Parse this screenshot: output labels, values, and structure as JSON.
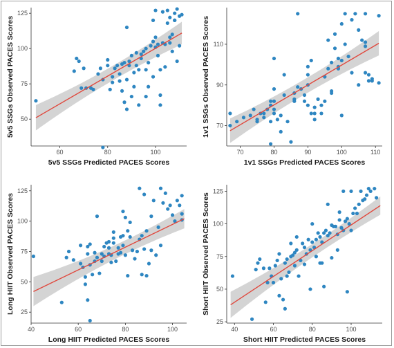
{
  "chart_data": [
    {
      "type": "scatter",
      "xlabel": "5v5 SSGs Predicted PACES Scores",
      "ylabel": "5v5 SSGs Observed PACES Scores",
      "xlim": [
        48,
        113
      ],
      "ylim": [
        31,
        129
      ],
      "xticks": [
        60,
        80,
        100
      ],
      "yticks": [
        50,
        75,
        100,
        125
      ],
      "point_color": "#2e86c1",
      "line_color": "#e0483d",
      "band_color": "#cccccc",
      "grid": false,
      "fit": {
        "x": [
          50,
          111
        ],
        "y": [
          51,
          111
        ],
        "band_half_width": [
          9,
          3,
          8
        ]
      },
      "points": [
        [
          50,
          63
        ],
        [
          66,
          84
        ],
        [
          67,
          93
        ],
        [
          68,
          91
        ],
        [
          69,
          72
        ],
        [
          70,
          86
        ],
        [
          71,
          72
        ],
        [
          73,
          72
        ],
        [
          74,
          71
        ],
        [
          76,
          82
        ],
        [
          77,
          86
        ],
        [
          78,
          78
        ],
        [
          78,
          30
        ],
        [
          80,
          88
        ],
        [
          80,
          92
        ],
        [
          81,
          71
        ],
        [
          82,
          76
        ],
        [
          82,
          80
        ],
        [
          83,
          86
        ],
        [
          84,
          88
        ],
        [
          85,
          77
        ],
        [
          85,
          82
        ],
        [
          86,
          89
        ],
        [
          86,
          70
        ],
        [
          87,
          90
        ],
        [
          87,
          62
        ],
        [
          88,
          57
        ],
        [
          88,
          78
        ],
        [
          88,
          115
        ],
        [
          89,
          91
        ],
        [
          89,
          88
        ],
        [
          90,
          66
        ],
        [
          90,
          95
        ],
        [
          91,
          73
        ],
        [
          91,
          83
        ],
        [
          92,
          88
        ],
        [
          92,
          97
        ],
        [
          93,
          60
        ],
        [
          93,
          85
        ],
        [
          94,
          96
        ],
        [
          94,
          93
        ],
        [
          95,
          98
        ],
        [
          96,
          100
        ],
        [
          96,
          66
        ],
        [
          96,
          85
        ],
        [
          97,
          73
        ],
        [
          97,
          90
        ],
        [
          98,
          102
        ],
        [
          99,
          105
        ],
        [
          99,
          80
        ],
        [
          99,
          120
        ],
        [
          100,
          101
        ],
        [
          100,
          127
        ],
        [
          100,
          108
        ],
        [
          101,
          95
        ],
        [
          101,
          103
        ],
        [
          102,
          67
        ],
        [
          102,
          60
        ],
        [
          102,
          85
        ],
        [
          103,
          126
        ],
        [
          103,
          104
        ],
        [
          104,
          103
        ],
        [
          104,
          87
        ],
        [
          105,
          118
        ],
        [
          105,
          127
        ],
        [
          106,
          108
        ],
        [
          106,
          104
        ],
        [
          106,
          122
        ],
        [
          107,
          110
        ],
        [
          107,
          98
        ],
        [
          108,
          120
        ],
        [
          108,
          120
        ],
        [
          108,
          125
        ],
        [
          109,
          128
        ],
        [
          109,
          91
        ],
        [
          110,
          102
        ],
        [
          110,
          123
        ],
        [
          111,
          124
        ]
      ]
    },
    {
      "type": "scatter",
      "xlabel": "1v1 SSGs Predicted PACES Scores",
      "ylabel": "1v1 SSGs Observed PACES Scores",
      "xlim": [
        66,
        112
      ],
      "ylim": [
        60,
        128
      ],
      "xticks": [
        70,
        80,
        90,
        100,
        110
      ],
      "yticks": [
        70,
        90,
        110
      ],
      "point_color": "#2e86c1",
      "line_color": "#e0483d",
      "band_color": "#cccccc",
      "grid": false,
      "fit": {
        "x": [
          67,
          111
        ],
        "y": [
          67.5,
          110.5
        ],
        "band_half_width": [
          6,
          2.5,
          6
        ]
      },
      "points": [
        [
          67,
          76
        ],
        [
          67,
          70
        ],
        [
          69,
          72
        ],
        [
          71,
          74
        ],
        [
          73,
          75
        ],
        [
          74,
          78
        ],
        [
          75,
          73
        ],
        [
          75,
          72
        ],
        [
          76,
          76
        ],
        [
          77,
          76
        ],
        [
          77,
          74
        ],
        [
          78,
          78
        ],
        [
          79,
          82
        ],
        [
          79,
          80
        ],
        [
          79,
          72
        ],
        [
          79,
          61
        ],
        [
          80,
          76
        ],
        [
          80,
          78
        ],
        [
          80,
          82
        ],
        [
          80,
          88
        ],
        [
          80,
          103
        ],
        [
          81,
          73
        ],
        [
          82,
          75
        ],
        [
          82,
          67
        ],
        [
          83,
          85
        ],
        [
          83,
          95
        ],
        [
          84,
          72
        ],
        [
          85,
          62
        ],
        [
          86,
          86
        ],
        [
          86,
          82
        ],
        [
          86,
          83
        ],
        [
          87,
          89
        ],
        [
          87,
          125
        ],
        [
          88,
          88
        ],
        [
          89,
          85
        ],
        [
          89,
          82
        ],
        [
          90,
          80
        ],
        [
          90,
          90
        ],
        [
          90,
          95
        ],
        [
          90,
          99
        ],
        [
          91,
          102
        ],
        [
          91,
          76
        ],
        [
          92,
          76
        ],
        [
          92,
          73
        ],
        [
          92,
          79
        ],
        [
          93,
          83
        ],
        [
          94,
          76
        ],
        [
          94,
          80
        ],
        [
          95,
          82
        ],
        [
          95,
          94
        ],
        [
          96,
          112
        ],
        [
          96,
          98
        ],
        [
          97,
          87
        ],
        [
          97,
          86
        ],
        [
          97,
          101
        ],
        [
          98,
          108
        ],
        [
          98,
          115
        ],
        [
          99,
          99
        ],
        [
          99,
          98
        ],
        [
          99,
          103
        ],
        [
          100,
          102
        ],
        [
          100,
          75
        ],
        [
          100,
          120
        ],
        [
          101,
          110
        ],
        [
          101,
          125
        ],
        [
          102,
          104
        ],
        [
          103,
          122
        ],
        [
          103,
          96
        ],
        [
          104,
          125
        ],
        [
          105,
          117
        ],
        [
          105,
          90
        ],
        [
          106,
          112
        ],
        [
          107,
          125
        ],
        [
          107,
          111
        ],
        [
          107,
          96
        ],
        [
          107,
          109
        ],
        [
          108,
          95
        ],
        [
          108,
          92
        ],
        [
          109,
          93
        ],
        [
          109,
          92
        ],
        [
          111,
          91
        ],
        [
          111,
          124
        ]
      ]
    },
    {
      "type": "scatter",
      "xlabel": "Long HIIT Predicted PACES Scores",
      "ylabel": "Long HIIT Observed PACES Scores",
      "xlim": [
        40,
        106
      ],
      "ylim": [
        16,
        130
      ],
      "xticks": [
        40,
        60,
        80,
        100
      ],
      "yticks": [
        25,
        50,
        75,
        100,
        125
      ],
      "point_color": "#2e86c1",
      "line_color": "#e0483d",
      "band_color": "#cccccc",
      "grid": false,
      "fit": {
        "x": [
          41,
          105
        ],
        "y": [
          42,
          102
        ],
        "band_half_width": [
          12,
          3,
          8
        ]
      },
      "points": [
        [
          41,
          71
        ],
        [
          53,
          33
        ],
        [
          55,
          70
        ],
        [
          56,
          75
        ],
        [
          58,
          68
        ],
        [
          61,
          65
        ],
        [
          61,
          80
        ],
        [
          62,
          62
        ],
        [
          63,
          54
        ],
        [
          63,
          48
        ],
        [
          64,
          35
        ],
        [
          64,
          73
        ],
        [
          64,
          79
        ],
        [
          65,
          18
        ],
        [
          65,
          81
        ],
        [
          65,
          64
        ],
        [
          66,
          56
        ],
        [
          67,
          67
        ],
        [
          67,
          74
        ],
        [
          68,
          104
        ],
        [
          68,
          70
        ],
        [
          69,
          57
        ],
        [
          70,
          73
        ],
        [
          70,
          67
        ],
        [
          71,
          71
        ],
        [
          71,
          79
        ],
        [
          72,
          82
        ],
        [
          73,
          83
        ],
        [
          73,
          78
        ],
        [
          73,
          73
        ],
        [
          74,
          66
        ],
        [
          74,
          72
        ],
        [
          75,
          82
        ],
        [
          75,
          86
        ],
        [
          75,
          91
        ],
        [
          76,
          67
        ],
        [
          77,
          78
        ],
        [
          77,
          73
        ],
        [
          78,
          74
        ],
        [
          78,
          87
        ],
        [
          79,
          88
        ],
        [
          79,
          80
        ],
        [
          79,
          108
        ],
        [
          80,
          72
        ],
        [
          80,
          103
        ],
        [
          81,
          92
        ],
        [
          81,
          55
        ],
        [
          82,
          99
        ],
        [
          82,
          87
        ],
        [
          83,
          76
        ],
        [
          84,
          69
        ],
        [
          85,
          75
        ],
        [
          86,
          85
        ],
        [
          86,
          127
        ],
        [
          87,
          56
        ],
        [
          87,
          88
        ],
        [
          88,
          77
        ],
        [
          88,
          122
        ],
        [
          89,
          55
        ],
        [
          89,
          92
        ],
        [
          90,
          65
        ],
        [
          91,
          104
        ],
        [
          91,
          76
        ],
        [
          92,
          117
        ],
        [
          93,
          72
        ],
        [
          94,
          95
        ],
        [
          95,
          127
        ],
        [
          95,
          80
        ],
        [
          96,
          115
        ],
        [
          97,
          123
        ],
        [
          98,
          110
        ],
        [
          99,
          113
        ],
        [
          100,
          105
        ],
        [
          101,
          100
        ],
        [
          102,
          117
        ],
        [
          103,
          113
        ],
        [
          104,
          121
        ],
        [
          104,
          106
        ],
        [
          104,
          101
        ]
      ]
    },
    {
      "type": "scatter",
      "xlabel": "Short HIIT Predicted PACES Scores",
      "ylabel": "Short HIIT Observed PACES Scores",
      "xlim": [
        36,
        116
      ],
      "ylim": [
        24,
        130
      ],
      "xticks": [
        40,
        60,
        80,
        100
      ],
      "yticks": [
        25,
        50,
        75,
        100,
        125
      ],
      "point_color": "#2e86c1",
      "line_color": "#e0483d",
      "band_color": "#cccccc",
      "grid": false,
      "fit": {
        "x": [
          38,
          115
        ],
        "y": [
          38,
          114
        ],
        "band_half_width": [
          10,
          3,
          7
        ]
      },
      "points": [
        [
          39,
          60
        ],
        [
          49,
          27
        ],
        [
          51,
          65
        ],
        [
          52,
          70
        ],
        [
          53,
          73
        ],
        [
          55,
          66
        ],
        [
          56,
          40
        ],
        [
          57,
          55
        ],
        [
          58,
          66
        ],
        [
          59,
          60
        ],
        [
          60,
          55
        ],
        [
          61,
          68
        ],
        [
          62,
          72
        ],
        [
          63,
          77
        ],
        [
          63,
          45
        ],
        [
          64,
          58
        ],
        [
          65,
          42
        ],
        [
          66,
          70
        ],
        [
          66,
          35
        ],
        [
          67,
          73
        ],
        [
          67,
          60
        ],
        [
          68,
          63
        ],
        [
          69,
          75
        ],
        [
          69,
          85
        ],
        [
          70,
          76
        ],
        [
          71,
          78
        ],
        [
          71,
          68
        ],
        [
          72,
          80
        ],
        [
          72,
          90
        ],
        [
          73,
          60
        ],
        [
          74,
          72
        ],
        [
          75,
          85
        ],
        [
          76,
          69
        ],
        [
          76,
          82
        ],
        [
          77,
          77
        ],
        [
          78,
          88
        ],
        [
          79,
          80
        ],
        [
          79,
          50
        ],
        [
          80,
          86
        ],
        [
          80,
          100
        ],
        [
          81,
          82
        ],
        [
          82,
          75
        ],
        [
          82,
          88
        ],
        [
          83,
          93
        ],
        [
          84,
          90
        ],
        [
          84,
          70
        ],
        [
          85,
          86
        ],
        [
          85,
          70
        ],
        [
          86,
          93
        ],
        [
          86,
          52
        ],
        [
          87,
          95
        ],
        [
          88,
          91
        ],
        [
          88,
          115
        ],
        [
          89,
          93
        ],
        [
          90,
          99
        ],
        [
          90,
          74
        ],
        [
          91,
          98
        ],
        [
          92,
          98
        ],
        [
          93,
          80
        ],
        [
          93,
          92
        ],
        [
          94,
          103
        ],
        [
          94,
          109
        ],
        [
          95,
          97
        ],
        [
          96,
          125
        ],
        [
          96,
          95
        ],
        [
          97,
          102
        ],
        [
          98,
          104
        ],
        [
          98,
          48
        ],
        [
          99,
          100
        ],
        [
          100,
          125
        ],
        [
          100,
          95
        ],
        [
          101,
          108
        ],
        [
          102,
          112
        ],
        [
          103,
          108
        ],
        [
          104,
          115
        ],
        [
          105,
          125
        ],
        [
          106,
          118
        ],
        [
          107,
          119
        ],
        [
          108,
          122
        ],
        [
          109,
          127
        ],
        [
          110,
          125
        ],
        [
          112,
          127
        ],
        [
          113,
          120
        ]
      ]
    }
  ]
}
